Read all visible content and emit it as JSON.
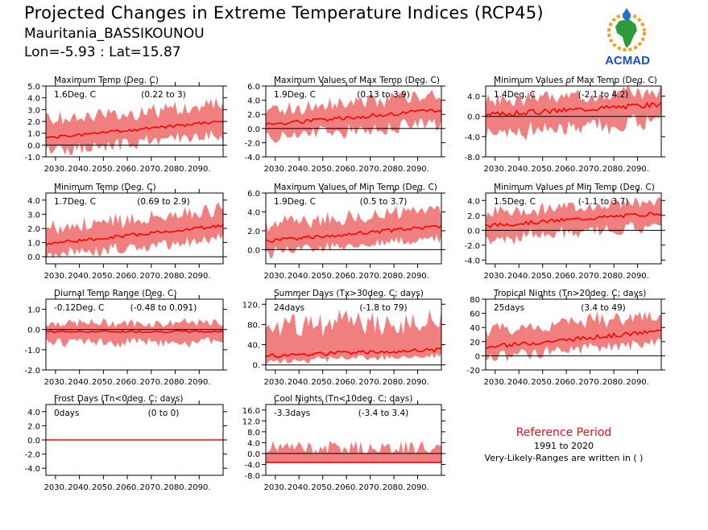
{
  "header": {
    "title": "Projected Changes in Extreme Temperature Indices (RCP45)",
    "location": "Mauritania_BASSIKOUNOU",
    "coordinates": "Lon=-5.93 : Lat=15.87"
  },
  "logo": {
    "text": "ACMAD",
    "icon": "africa-drop-logo-icon"
  },
  "reference": {
    "title": "Reference Period",
    "years": "1991 to 2020",
    "note": "Very-Likely-Ranges are written in ( )"
  },
  "colors": {
    "band": "#f08080",
    "line": "#ff0000",
    "zero": "#000000"
  },
  "chart_data": [
    {
      "type": "line",
      "title": "Maximum Temp (Deg. C)",
      "stat": "1.6Deg. C",
      "range": "(0.22 to 3)",
      "yticks": [
        "-1.0",
        "0.0",
        "1.0",
        "2.0",
        "3.0",
        "4.0",
        "5.0"
      ],
      "ylim": [
        -1.0,
        5.0
      ],
      "xticks": [
        "2030.",
        "2040.",
        "2050.",
        "2060.",
        "2070.",
        "2080.",
        "2090."
      ],
      "x_start": 2026,
      "x_end": 2100,
      "start": 0.6,
      "end": 2.0,
      "noise": 0.12,
      "lower_offset": 1.2,
      "upper_offset": 1.5
    },
    {
      "type": "line",
      "title": "Maximum Values of Max Temp (Deg. C)",
      "stat": "1.9Deg. C",
      "range": "(0.13 to 3.9)",
      "yticks": [
        "-4.0",
        "-2.0",
        "0.0",
        "2.0",
        "4.0",
        "6.0"
      ],
      "ylim": [
        -4.0,
        6.0
      ],
      "xticks": [
        "2030.",
        "2040.",
        "2050.",
        "2060.",
        "2070.",
        "2080.",
        "2090."
      ],
      "x_start": 2026,
      "x_end": 2100,
      "start": 0.6,
      "end": 2.6,
      "noise": 0.3,
      "lower_offset": 2.0,
      "upper_offset": 2.2
    },
    {
      "type": "line",
      "title": "Minimum Values of Max Temp (Deg. C)",
      "stat": "1.4Deg. C",
      "range": "(-2.1 to 4.2)",
      "yticks": [
        "-8.0",
        "-4.0",
        "0.0",
        "4.0"
      ],
      "ylim": [
        -8.0,
        6.0
      ],
      "xticks": [
        "2030.",
        "2040.",
        "2050.",
        "2060.",
        "2070.",
        "2080.",
        "2090."
      ],
      "x_start": 2026,
      "x_end": 2100,
      "start": 0.3,
      "end": 2.4,
      "noise": 0.5,
      "lower_offset": 3.8,
      "upper_offset": 2.8
    },
    {
      "type": "line",
      "title": "Minimum Temp (Deg. C)",
      "stat": "1.7Deg. C",
      "range": "(0.69 to 2.9)",
      "yticks": [
        "0.0",
        "1.0",
        "2.0",
        "3.0",
        "4.0"
      ],
      "ylim": [
        -0.5,
        4.5
      ],
      "xticks": [
        "2030.",
        "2040.",
        "2050.",
        "2060.",
        "2070.",
        "2080.",
        "2090."
      ],
      "x_start": 2026,
      "x_end": 2100,
      "start": 0.9,
      "end": 2.2,
      "noise": 0.12,
      "lower_offset": 0.9,
      "upper_offset": 1.2
    },
    {
      "type": "line",
      "title": "Maximum Values of Min Temp (Deg. C)",
      "stat": "1.9Deg. C",
      "range": "(0.5 to 3.7)",
      "yticks": [
        "0.0",
        "2.0",
        "4.0",
        "6.0"
      ],
      "ylim": [
        -1.5,
        6.0
      ],
      "xticks": [
        "2030.",
        "2040.",
        "2050.",
        "2060.",
        "2070.",
        "2080.",
        "2090."
      ],
      "x_start": 2026,
      "x_end": 2100,
      "start": 0.9,
      "end": 2.5,
      "noise": 0.2,
      "lower_offset": 1.3,
      "upper_offset": 1.8
    },
    {
      "type": "line",
      "title": "Minimum Values of Min Temp (Deg. C)",
      "stat": "1.5Deg. C",
      "range": "(-1.1 to 3.7)",
      "yticks": [
        "-4.0",
        "-2.0",
        "0.0",
        "2.0",
        "4.0"
      ],
      "ylim": [
        -4.5,
        5.0
      ],
      "xticks": [
        "2030.",
        "2040.",
        "2050.",
        "2060.",
        "2070.",
        "2080.",
        "2090."
      ],
      "x_start": 2026,
      "x_end": 2100,
      "start": 0.6,
      "end": 2.3,
      "noise": 0.25,
      "lower_offset": 1.9,
      "upper_offset": 1.8
    },
    {
      "type": "line",
      "title": "Diurnal Temp Range (Deg. C)",
      "stat": "-0.12Deg. C",
      "range": "(-0.48 to 0.091)",
      "yticks": [
        "-2.0",
        "-1.0",
        "0.0",
        "1.0"
      ],
      "ylim": [
        -2.0,
        1.5
      ],
      "xticks": [
        "2030.",
        "2040.",
        "2050.",
        "2060.",
        "2070.",
        "2080.",
        "2090."
      ],
      "x_start": 2026,
      "x_end": 2100,
      "start": -0.1,
      "end": -0.1,
      "noise": 0.05,
      "lower_offset": 0.55,
      "upper_offset": 0.45
    },
    {
      "type": "line",
      "title": "Summer Days (Tx>30deg. C; days)",
      "stat": "24days",
      "range": "(-1.8 to 79)",
      "yticks": [
        "0.",
        "40.",
        "80.",
        "120."
      ],
      "ylim": [
        -10,
        130
      ],
      "xticks": [
        "2030.",
        "2040.",
        "2050.",
        "2060.",
        "2070.",
        "2080.",
        "2090."
      ],
      "x_start": 2026,
      "x_end": 2100,
      "start": 18,
      "end": 30,
      "noise": 4,
      "lower_offset": 12,
      "upper_offset": 60
    },
    {
      "type": "line",
      "title": "Tropical Nights (Tn>20deg. C; days)",
      "stat": "25days",
      "range": "(3.4 to 49)",
      "yticks": [
        "-20",
        "0",
        "20",
        "40",
        "60",
        "80"
      ],
      "ylim": [
        -20,
        80
      ],
      "xticks": [
        "2030.",
        "2040.",
        "2050.",
        "2060.",
        "2070.",
        "2080.",
        "2090."
      ],
      "x_start": 2026,
      "x_end": 2100,
      "start": 12,
      "end": 35,
      "noise": 3,
      "lower_offset": 15,
      "upper_offset": 25
    },
    {
      "type": "line",
      "title": "Frost Days (Tn<0deg. C; days)",
      "stat": "0days",
      "range": "(0 to 0)",
      "yticks": [
        "-4.0",
        "-2.0",
        "0.0",
        "2.0",
        "4.0"
      ],
      "ylim": [
        -5.0,
        5.0
      ],
      "xticks": [
        "2030.",
        "2040.",
        "2050.",
        "2060.",
        "2070.",
        "2080.",
        "2090."
      ],
      "x_start": 2026,
      "x_end": 2100,
      "start": 0,
      "end": 0,
      "noise": 0,
      "lower_offset": 0,
      "upper_offset": 0
    },
    {
      "type": "line",
      "title": "Cool Nights (Tn<10deg. C; days)",
      "stat": "-3.3days",
      "range": "(-3.4 to 3.4)",
      "yticks": [
        "-8.0",
        "-4.0",
        "0.0",
        "4.0",
        "8.0",
        "12.0",
        "16.0"
      ],
      "ylim": [
        -8.0,
        18.0
      ],
      "xticks": [
        "2030.",
        "2040.",
        "2050.",
        "2060.",
        "2070.",
        "2080.",
        "2090."
      ],
      "x_start": 2026,
      "x_end": 2100,
      "start": -3.3,
      "end": -3.3,
      "noise": 0,
      "lower_offset": 0.1,
      "upper_offset": 5.8
    }
  ]
}
